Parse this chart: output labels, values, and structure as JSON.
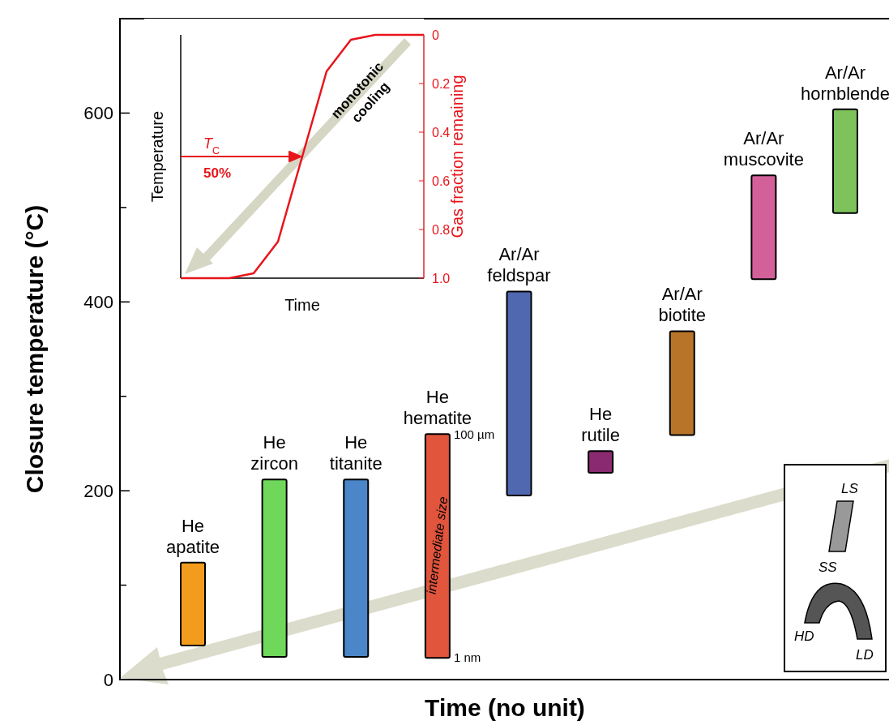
{
  "chart_data": [
    {
      "type": "bar",
      "xlabel": "Time (no unit)",
      "ylabel": "Closure temperature (°C)",
      "categories": [
        "He apatite",
        "He zircon",
        "He titanite",
        "He hematite",
        "Ar/Ar feldspar",
        "He rutile",
        "Ar/Ar biotite",
        "Ar/Ar muscovite",
        "Ar/Ar hornblende"
      ],
      "base": [
        36,
        24,
        24,
        23,
        195,
        219,
        259,
        424,
        494
      ],
      "values": [
        88,
        188,
        188,
        237,
        216,
        23,
        110,
        110,
        110
      ],
      "colors": [
        "#f29b1c",
        "#6fd85a",
        "#4a86c8",
        "#e0553c",
        "#5068b0",
        "#8a2a70",
        "#b8752a",
        "#d4609a",
        "#7dc25a"
      ],
      "ylim": [
        0,
        700
      ],
      "yticks": [
        0,
        {
          "value": 100,
          "label": null
        },
        200,
        {
          "value": 300,
          "label": null
        },
        400,
        {
          "value": 500,
          "label": null
        },
        600
      ],
      "annotations": [
        "100 µm",
        "1 nm",
        "intermediate size",
        "LS",
        "SS",
        "HD",
        "LD"
      ]
    },
    {
      "type": "line",
      "xlabel": "Time",
      "ylabel": "Temperature",
      "y2label": "Gas fraction remaining",
      "categories": [
        null,
        null,
        null,
        null,
        null,
        null,
        null,
        null,
        null,
        null,
        null
      ],
      "series": [
        {
          "color": "#e8151b",
          "values": [
            1,
            1,
            1,
            0.98,
            0.85,
            0.5,
            0.15,
            0.02,
            0,
            0,
            0
          ]
        }
      ],
      "ylim": [
        1,
        0
      ],
      "yticks": [
        0,
        0.2,
        0.4,
        0.6,
        0.8,
        {
          "value": 1,
          "label": "1.0"
        }
      ],
      "tick_labels": "y",
      "ref_lines": [
        {
          "axis": "y",
          "value": 0.5,
          "label": "T$_{C}$",
          "color": "#e8151b"
        }
      ],
      "annotations": [
        "50%",
        "monotonic cooling"
      ]
    }
  ]
}
